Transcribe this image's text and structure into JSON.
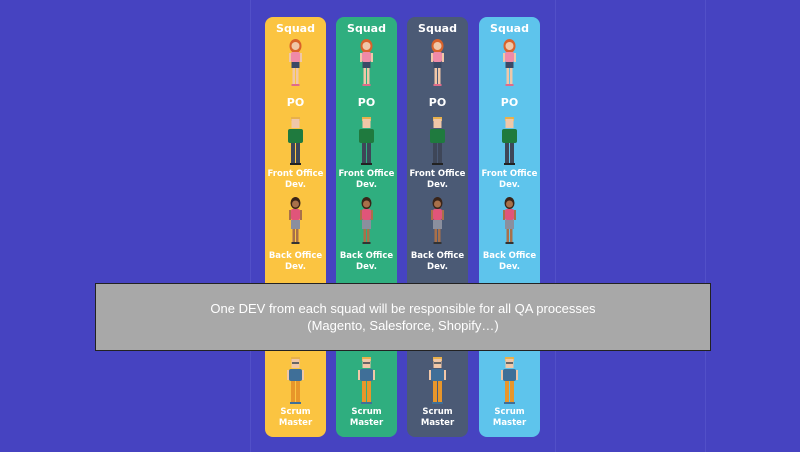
{
  "squads": [
    {
      "title": "Squad",
      "color": "#fbc441",
      "roles": [
        "PO",
        "Front Office Dev.",
        "Back Office Dev.",
        "Scrum Master"
      ]
    },
    {
      "title": "Squad",
      "color": "#2fae7f",
      "roles": [
        "PO",
        "Front Office Dev.",
        "Back Office Dev.",
        "Scrum Master"
      ]
    },
    {
      "title": "Squad",
      "color": "#4b5a75",
      "roles": [
        "PO",
        "Front Office Dev.",
        "Back Office Dev.",
        "Scrum Master"
      ]
    },
    {
      "title": "Squad",
      "color": "#5ec4ec",
      "roles": [
        "PO",
        "Front Office Dev.",
        "Back Office Dev.",
        "Scrum Master"
      ]
    }
  ],
  "roles_split": {
    "Front Office Dev.": [
      "Front Office",
      "Dev."
    ],
    "Back Office Dev.": [
      "Back Office",
      "Dev."
    ],
    "Scrum Master": [
      "Scrum",
      "Master"
    ]
  },
  "overlay": {
    "line1": "One DEV from each squad will be responsible for all QA processes",
    "line2": "(Magento, Salesforce, Shopify…)"
  },
  "figure_icons": [
    "woman-po-icon",
    "man-front-office-dev-icon",
    "woman-back-office-dev-icon",
    "man-scrum-master-icon"
  ]
}
